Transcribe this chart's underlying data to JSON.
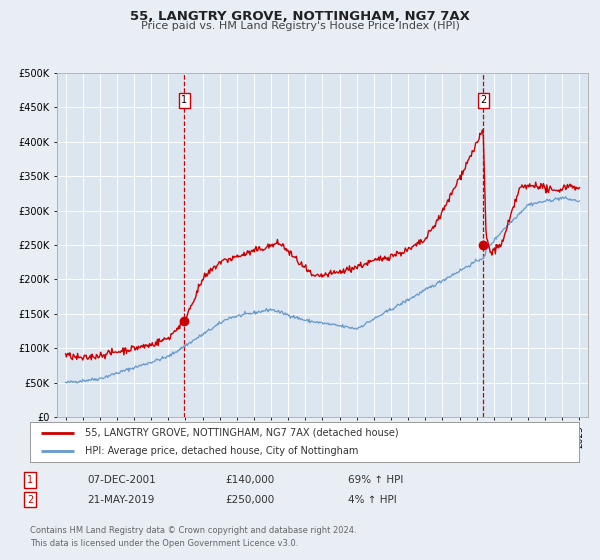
{
  "title": "55, LANGTRY GROVE, NOTTINGHAM, NG7 7AX",
  "subtitle": "Price paid vs. HM Land Registry's House Price Index (HPI)",
  "legend_line1": "55, LANGTRY GROVE, NOTTINGHAM, NG7 7AX (detached house)",
  "legend_line2": "HPI: Average price, detached house, City of Nottingham",
  "footnote1": "Contains HM Land Registry data © Crown copyright and database right 2024.",
  "footnote2": "This data is licensed under the Open Government Licence v3.0.",
  "transaction1_date": "07-DEC-2001",
  "transaction1_price": "£140,000",
  "transaction1_hpi": "69% ↑ HPI",
  "transaction2_date": "21-MAY-2019",
  "transaction2_price": "£250,000",
  "transaction2_hpi": "4% ↑ HPI",
  "vline1_year": 2001.92,
  "vline2_year": 2019.38,
  "marker1_x": 2001.92,
  "marker1_y": 140000,
  "marker2_x": 2019.38,
  "marker2_y": 250000,
  "red_color": "#cc0000",
  "blue_color": "#6699cc",
  "bg_color": "#e8eef4",
  "plot_bg": "#dce6f0",
  "ylim": [
    0,
    500000
  ],
  "xlim_start": 1994.5,
  "xlim_end": 2025.5,
  "title_fontsize": 9.5,
  "subtitle_fontsize": 8
}
